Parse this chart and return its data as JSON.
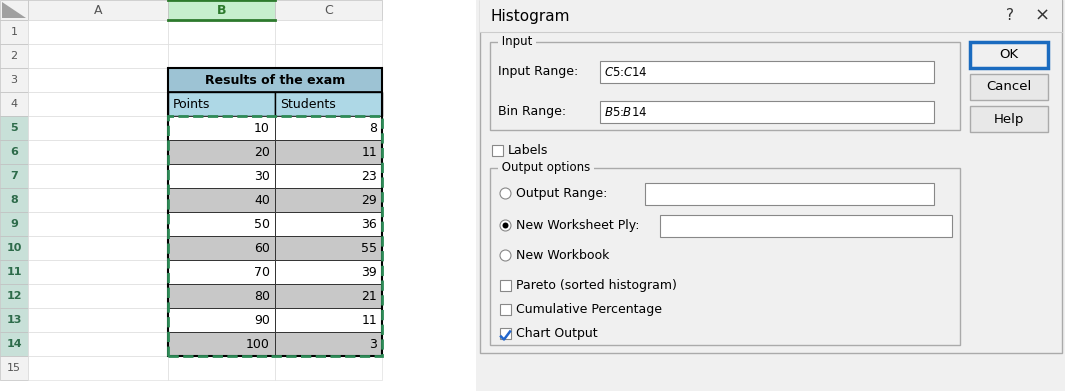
{
  "spreadsheet": {
    "bg_color": "#ffffff",
    "grid_color": "#d0d0d0",
    "header_bg": "#f2f2f2",
    "selected_col_header_bg": "#c6efce",
    "selected_col_text": "#2d7a2d",
    "row_header_selected_bg": "#c8e0d8",
    "row_header_selected_text": "#2d6b4a",
    "table_title": "Results of the exam",
    "table_title_bg": "#9dc3d4",
    "col_header_row": [
      "Points",
      "Students"
    ],
    "col_header_bg": "#aed8e6",
    "points": [
      10,
      20,
      30,
      40,
      50,
      60,
      70,
      80,
      90,
      100
    ],
    "students": [
      8,
      11,
      23,
      29,
      36,
      55,
      39,
      21,
      11,
      3
    ],
    "alt_row_bg": "#c8c8c8",
    "white_row_bg": "#ffffff",
    "dashed_border_color": "#2e8b57",
    "table_border_color": "#000000",
    "corner_triangle_color": "#a0a0a0"
  },
  "dialog": {
    "bg_color": "#f0f0f0",
    "title": "Histogram",
    "title_fontsize": 11,
    "input_range_label": "Input Range:",
    "input_range_value": "$C$5:$C$14",
    "bin_range_label": "Bin Range:",
    "bin_range_value": "$B$5:$B$14",
    "labels_text": "Labels",
    "input_section_label": "Input",
    "output_section_label": "Output options",
    "output_range_label": "Output Range:",
    "new_worksheet_label": "New Worksheet Ply:",
    "new_workbook_label": "New Workbook",
    "pareto_label": "Pareto (sorted histogram)",
    "cumulative_label": "Cumulative Percentage",
    "chart_output_label": "Chart Output",
    "new_worksheet_checked": true,
    "chart_output_checked": true,
    "btn_ok": "OK",
    "btn_cancel": "Cancel",
    "btn_help": "Help",
    "ok_border_color": "#1a6bbf",
    "icon_red_color": "#cc3333",
    "question_mark": "?",
    "close_x": "×"
  }
}
